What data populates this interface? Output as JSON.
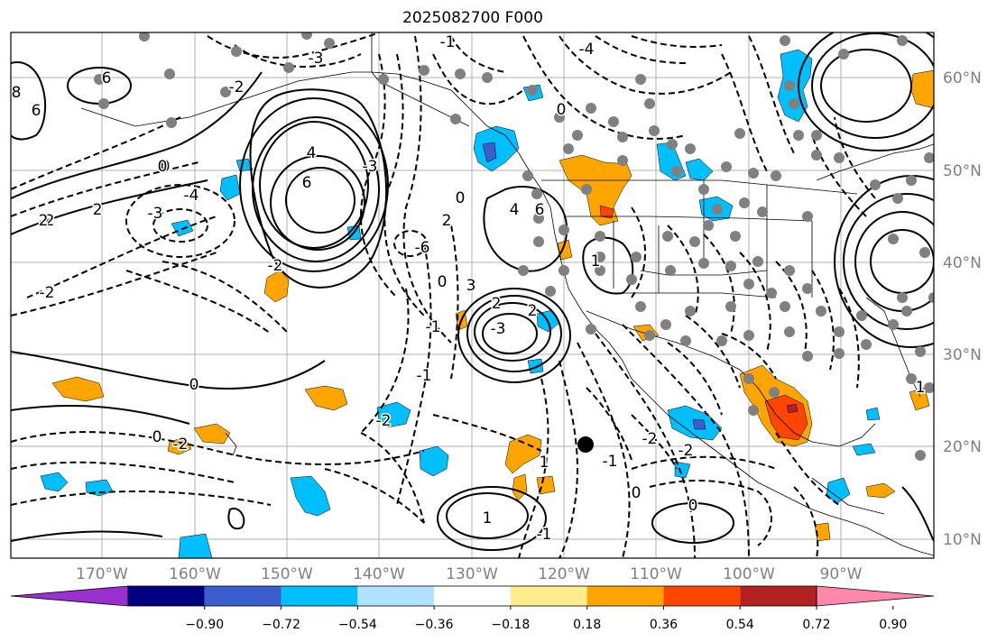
{
  "title": "2025082700 F000",
  "lon_labels": [
    "170°W",
    "160°W",
    "150°W",
    "140°W",
    "130°W",
    "120°W",
    "110°W",
    "100°W",
    "90°W"
  ],
  "lat_labels": [
    "60°N",
    "50°N",
    "40°N",
    "30°N",
    "20°N",
    "10°N"
  ],
  "colorbar": {
    "ticks": [
      "−0.90",
      "−0.72",
      "−0.54",
      "−0.36",
      "−0.18",
      "0.18",
      "0.36",
      "0.54",
      "0.72",
      "0.90"
    ],
    "colors": [
      "#9b30d0",
      "#000080",
      "#3a5fcd",
      "#00bfff",
      "#b0e2ff",
      "#ffffff",
      "#ffec8b",
      "#ffa500",
      "#ff4500",
      "#b22222",
      "#ff88aa"
    ]
  },
  "contour_labels": [
    "-2",
    "6",
    "8",
    "6",
    "0",
    "2",
    "-3",
    "-4",
    "2",
    "6",
    "4",
    "-1",
    "-3",
    "-4",
    "0",
    "0",
    "2",
    "-6",
    "4",
    "6",
    "-3",
    "-2",
    "2",
    "-2",
    "1",
    "-1",
    "0",
    "-2",
    "3",
    "-2",
    "0",
    "-3",
    "-2",
    "0",
    "-1",
    "0",
    "0",
    "2",
    "1",
    "-1",
    "-2",
    "-1",
    "-2",
    "0",
    "0",
    "1",
    "1"
  ]
}
